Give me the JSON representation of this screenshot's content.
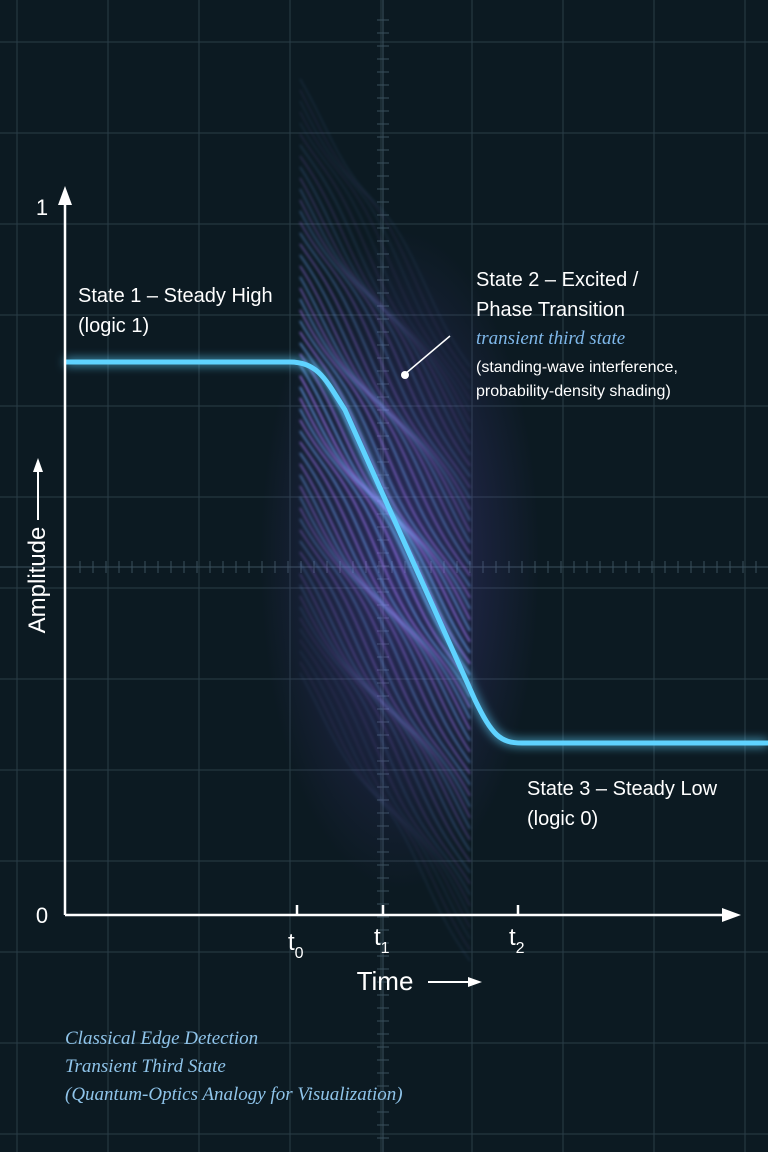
{
  "axes": {
    "y_top": "1",
    "y_bottom": "0",
    "y_label": "Amplitude",
    "x_label": "Time",
    "x_ticks": [
      {
        "base": "t",
        "sub": "0"
      },
      {
        "base": "t",
        "sub": "1"
      },
      {
        "base": "t",
        "sub": "2"
      }
    ]
  },
  "annotations": [
    {
      "lines": [
        "State 1 – Steady High",
        "(logic 1)"
      ]
    },
    {
      "lines": [
        "State 2 – Excited /",
        "Phase Transition"
      ],
      "emphasis": "transient third state",
      "notes": [
        "(standing-wave interference,",
        "probability-density shading)"
      ]
    },
    {
      "lines": [
        "State 3 – Steady Low",
        "(logic 0)"
      ]
    }
  ],
  "caption": [
    "Classical Edge Detection",
    "Transient Third State",
    "(Quantum-Optics Analogy for Visualization)"
  ]
}
